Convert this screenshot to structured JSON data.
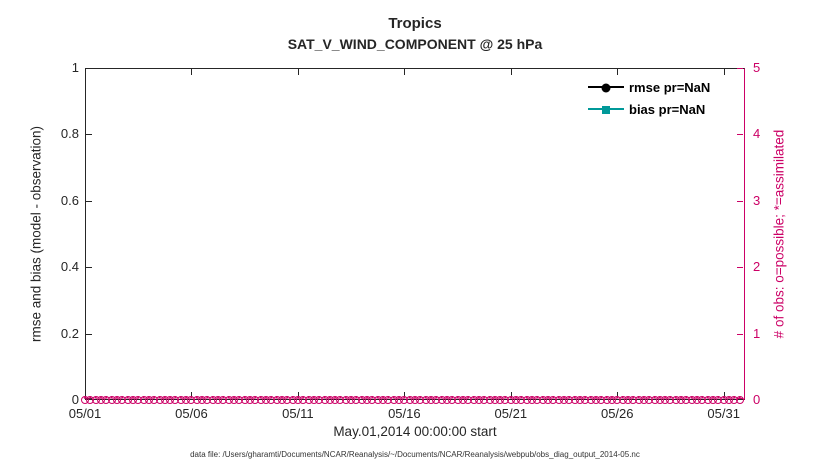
{
  "title": "Tropics",
  "subtitle": "SAT_V_WIND_COMPONENT @ 25 hPa",
  "left_axis": {
    "label": "rmse and bias (model - observation)",
    "min": 0,
    "max": 1,
    "ticks": [
      "0",
      "0.2",
      "0.4",
      "0.6",
      "0.8",
      "1"
    ]
  },
  "right_axis": {
    "label": "# of obs: o=possible; *=assimilated",
    "min": 0,
    "max": 5,
    "ticks": [
      "0",
      "1",
      "2",
      "3",
      "4",
      "5"
    ],
    "color": "#cc0066"
  },
  "x_axis": {
    "label": "May.01,2014 00:00:00 start",
    "span_days": 31,
    "ticks": [
      {
        "label": "05/01",
        "day": 1
      },
      {
        "label": "05/06",
        "day": 6
      },
      {
        "label": "05/11",
        "day": 11
      },
      {
        "label": "05/16",
        "day": 16
      },
      {
        "label": "05/21",
        "day": 21
      },
      {
        "label": "05/26",
        "day": 26
      },
      {
        "label": "05/31",
        "day": 31
      }
    ]
  },
  "legend": [
    {
      "label": "rmse pr=NaN",
      "color": "#000000",
      "marker": "circle"
    },
    {
      "label": "bias pr=NaN",
      "color": "#009999",
      "marker": "square"
    }
  ],
  "caption": "data file: /Users/gharamti/Documents/NCAR/Reanalysis/~/Documents/NCAR/Reanalysis/webpub/obs_diag_output_2014-05.nc",
  "chart_data": {
    "type": "line",
    "title": "Tropics",
    "subtitle": "SAT_V_WIND_COMPONENT @ 25 hPa",
    "xlabel": "May.01,2014 00:00:00 start",
    "x_tick_labels": [
      "05/01",
      "05/06",
      "05/11",
      "05/16",
      "05/21",
      "05/26",
      "05/31"
    ],
    "ylabel_left": "rmse and bias (model - observation)",
    "ylabel_right": "# of obs: o=possible; *=assimilated",
    "ylim_left": [
      0,
      1
    ],
    "ylim_right": [
      0,
      5
    ],
    "grid": false,
    "legend_position": "top-right-inside",
    "series": [
      {
        "name": "rmse pr=NaN",
        "axis": "left",
        "color": "#000000",
        "marker": "circle",
        "values": "all NaN - no line drawn"
      },
      {
        "name": "bias pr=NaN",
        "axis": "left",
        "color": "#009999",
        "marker": "square",
        "values": "all NaN - no line drawn"
      },
      {
        "name": "# of possible obs",
        "axis": "right",
        "color": "#cc0066",
        "marker": "o",
        "constant_value": 0,
        "points": 124
      },
      {
        "name": "# of assimilated obs",
        "axis": "right",
        "color": "#cc0066",
        "marker": "*",
        "constant_value": 0,
        "points": 124
      }
    ]
  }
}
